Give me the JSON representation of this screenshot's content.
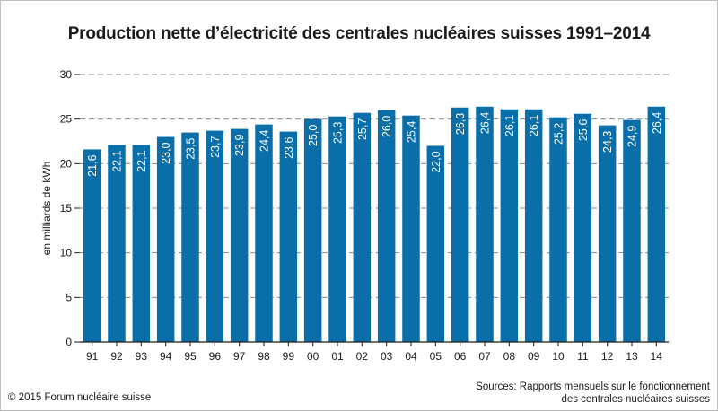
{
  "title": "Production nette d’électricité des centrales nucléaires suisses 1991–2014",
  "footer": {
    "copyright": "© 2015 Forum nucléaire suisse",
    "sources_line1": "Sources: Rapports mensuels sur le fonctionnement",
    "sources_line2": "des centrales nucléaires suisses"
  },
  "colors": {
    "bar": "#0a6fa8",
    "grid": "#8c8c8c",
    "axis": "#1a1a1a",
    "bar_label": "#ffffff"
  },
  "chart_data": {
    "type": "bar",
    "title": "Production nette d’électricité des centrales nucléaires suisses 1991–2014",
    "xlabel": "",
    "ylabel": "en milliards de kWh",
    "categories": [
      "91",
      "92",
      "93",
      "94",
      "95",
      "96",
      "97",
      "98",
      "99",
      "00",
      "01",
      "02",
      "03",
      "04",
      "05",
      "06",
      "07",
      "08",
      "09",
      "10",
      "11",
      "12",
      "13",
      "14"
    ],
    "values": [
      21.6,
      22.1,
      22.1,
      23.0,
      23.5,
      23.7,
      23.9,
      24.4,
      23.6,
      25.0,
      25.3,
      25.7,
      26.0,
      25.4,
      22.0,
      26.3,
      26.4,
      26.1,
      26.1,
      25.2,
      25.6,
      24.3,
      24.9,
      26.4
    ],
    "data_labels": [
      "21,6",
      "22,1",
      "22,1",
      "23,0",
      "23,5",
      "23,7",
      "23,9",
      "24,4",
      "23,6",
      "25,0",
      "25,3",
      "25,7",
      "26,0",
      "25,4",
      "22,0",
      "26,3",
      "26,4",
      "26,1",
      "26,1",
      "25,2",
      "25,6",
      "24,3",
      "24,9",
      "26,4"
    ],
    "ylim": [
      0,
      30
    ],
    "yticks": [
      0,
      5,
      10,
      15,
      20,
      25,
      30
    ],
    "ytick_labels": [
      "0",
      "5",
      "10",
      "15",
      "20",
      "25",
      "30"
    ],
    "grid": true,
    "legend": "none"
  }
}
